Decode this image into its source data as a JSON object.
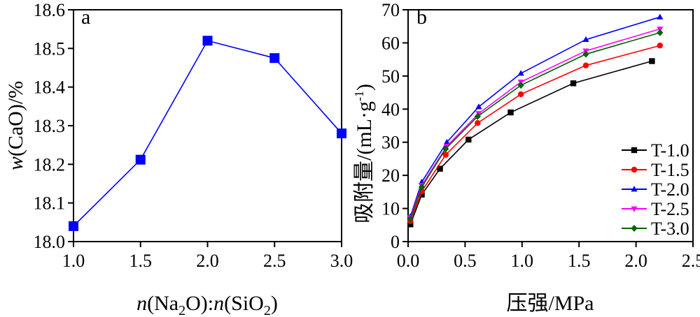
{
  "chart_data": [
    {
      "type": "line",
      "panel_label": "a",
      "x": [
        1.0,
        1.5,
        2.0,
        2.5,
        3.0
      ],
      "series": [
        {
          "values": [
            18.04,
            18.212,
            18.52,
            18.475,
            18.28
          ],
          "color": "#0000ff",
          "marker": "square"
        }
      ],
      "xlabel": "n(Na2O):n(SiO2)",
      "ylabel": "w(CaO)/%",
      "xlim": [
        1.0,
        3.0
      ],
      "ylim": [
        18.0,
        18.6
      ],
      "xticks": [
        "1.0",
        "1.5",
        "2.0",
        "2.5",
        "3.0"
      ],
      "yticks": [
        "18.0",
        "18.1",
        "18.2",
        "18.3",
        "18.4",
        "18.5",
        "18.6"
      ],
      "grid": false
    },
    {
      "type": "line",
      "panel_label": "b",
      "xlabel": "压强/MPa",
      "ylabel": "吸附量/(mL·g-1)",
      "xlim": [
        0.0,
        2.5
      ],
      "ylim": [
        0,
        70
      ],
      "xticks": [
        "0.0",
        "0.5",
        "1.0",
        "1.5",
        "2.0",
        "2.5"
      ],
      "yticks": [
        "0",
        "10",
        "20",
        "30",
        "40",
        "50",
        "60",
        "70"
      ],
      "legend_position": "bottom-right",
      "grid": false,
      "series": [
        {
          "name": "T-1.0",
          "color": "#000000",
          "marker": "square",
          "x": [
            0.02,
            0.12,
            0.28,
            0.53,
            0.9,
            1.45,
            2.14
          ],
          "values": [
            5.2,
            14.2,
            22.0,
            30.8,
            39.0,
            47.8,
            54.5
          ]
        },
        {
          "name": "T-1.5",
          "color": "#ff0000",
          "marker": "circle",
          "x": [
            0.02,
            0.12,
            0.33,
            0.61,
            0.99,
            1.56,
            2.21
          ],
          "values": [
            6.2,
            15.2,
            26.2,
            35.8,
            44.5,
            53.2,
            59.2
          ]
        },
        {
          "name": "T-2.0",
          "color": "#0000ff",
          "marker": "triangle-up",
          "x": [
            0.02,
            0.12,
            0.34,
            0.62,
            0.99,
            1.56,
            2.21
          ],
          "values": [
            7.6,
            18.0,
            30.0,
            40.7,
            50.8,
            61.0,
            67.8
          ]
        },
        {
          "name": "T-2.5",
          "color": "#ff00ff",
          "marker": "triangle-down",
          "x": [
            0.02,
            0.12,
            0.34,
            0.62,
            0.99,
            1.56,
            2.21
          ],
          "values": [
            7.2,
            17.0,
            28.8,
            38.7,
            48.2,
            57.6,
            64.2
          ]
        },
        {
          "name": "T-3.0",
          "color": "#006400",
          "marker": "diamond",
          "x": [
            0.02,
            0.12,
            0.33,
            0.61,
            0.99,
            1.56,
            2.21
          ],
          "values": [
            6.8,
            16.5,
            28.0,
            37.8,
            47.2,
            56.6,
            63.1
          ]
        }
      ]
    }
  ]
}
